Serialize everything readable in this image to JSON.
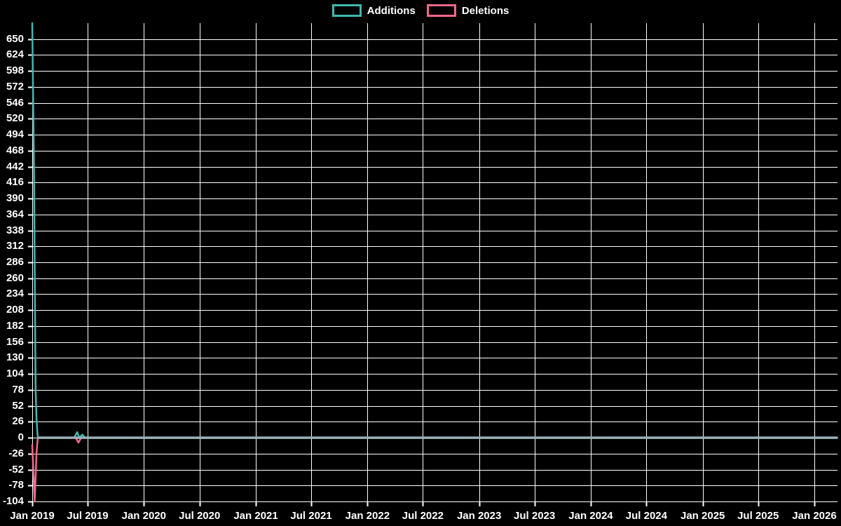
{
  "colors": {
    "background": "#000000",
    "grid": "#ffffff",
    "text": "#ffffff",
    "additions": "#41b8ae",
    "deletions": "#f4688a",
    "zero_overlap_line": "#9cb1ba"
  },
  "legend": {
    "items": [
      {
        "label": "Additions",
        "color": "#41b8ae"
      },
      {
        "label": "Deletions",
        "color": "#f4688a"
      }
    ]
  },
  "chart_data": {
    "type": "line",
    "title": "",
    "xlabel": "",
    "ylabel": "",
    "grid": true,
    "legend_position": "top-center",
    "x_axis": {
      "unit": "days since Jan 1 2019",
      "domain_days": [
        0,
        2632
      ],
      "tick_days": [
        0,
        181,
        365,
        547,
        731,
        912,
        1096,
        1277,
        1461,
        1642,
        1826,
        2008,
        2192,
        2373,
        2557
      ],
      "tick_labels": [
        "Jan 2019",
        "Jul 2019",
        "Jan 2020",
        "Jul 2020",
        "Jan 2021",
        "Jul 2021",
        "Jan 2022",
        "Jul 2022",
        "Jan 2023",
        "Jul 2023",
        "Jan 2024",
        "Jul 2024",
        "Jan 2025",
        "Jul 2025",
        "Jan 2026"
      ]
    },
    "y_axis": {
      "min": -104,
      "max": 676,
      "tick_step": 26,
      "tick_values": [
        650,
        624,
        598,
        572,
        546,
        520,
        494,
        468,
        442,
        416,
        390,
        364,
        338,
        312,
        286,
        260,
        234,
        208,
        182,
        156,
        130,
        104,
        78,
        52,
        26,
        0,
        -26,
        -52,
        -78,
        -104
      ]
    },
    "series": [
      {
        "name": "Additions",
        "color": "#41b8ae",
        "points": [
          [
            0,
            676
          ],
          [
            6,
            430
          ],
          [
            11,
            80
          ],
          [
            14,
            30
          ],
          [
            18,
            0
          ],
          [
            137,
            0
          ],
          [
            147,
            9
          ],
          [
            153,
            0
          ],
          [
            164,
            5
          ],
          [
            172,
            0
          ],
          [
            2632,
            0
          ]
        ]
      },
      {
        "name": "Deletions",
        "color": "#f4688a",
        "points": [
          [
            0,
            -12
          ],
          [
            8,
            -104
          ],
          [
            14,
            -25
          ],
          [
            18,
            0
          ],
          [
            142,
            0
          ],
          [
            151,
            -8
          ],
          [
            160,
            0
          ],
          [
            2632,
            0
          ]
        ]
      }
    ],
    "zero_overlap_line": {
      "from_day": 18,
      "to_day": 2632,
      "value": 0,
      "color": "#9cb1ba"
    }
  }
}
